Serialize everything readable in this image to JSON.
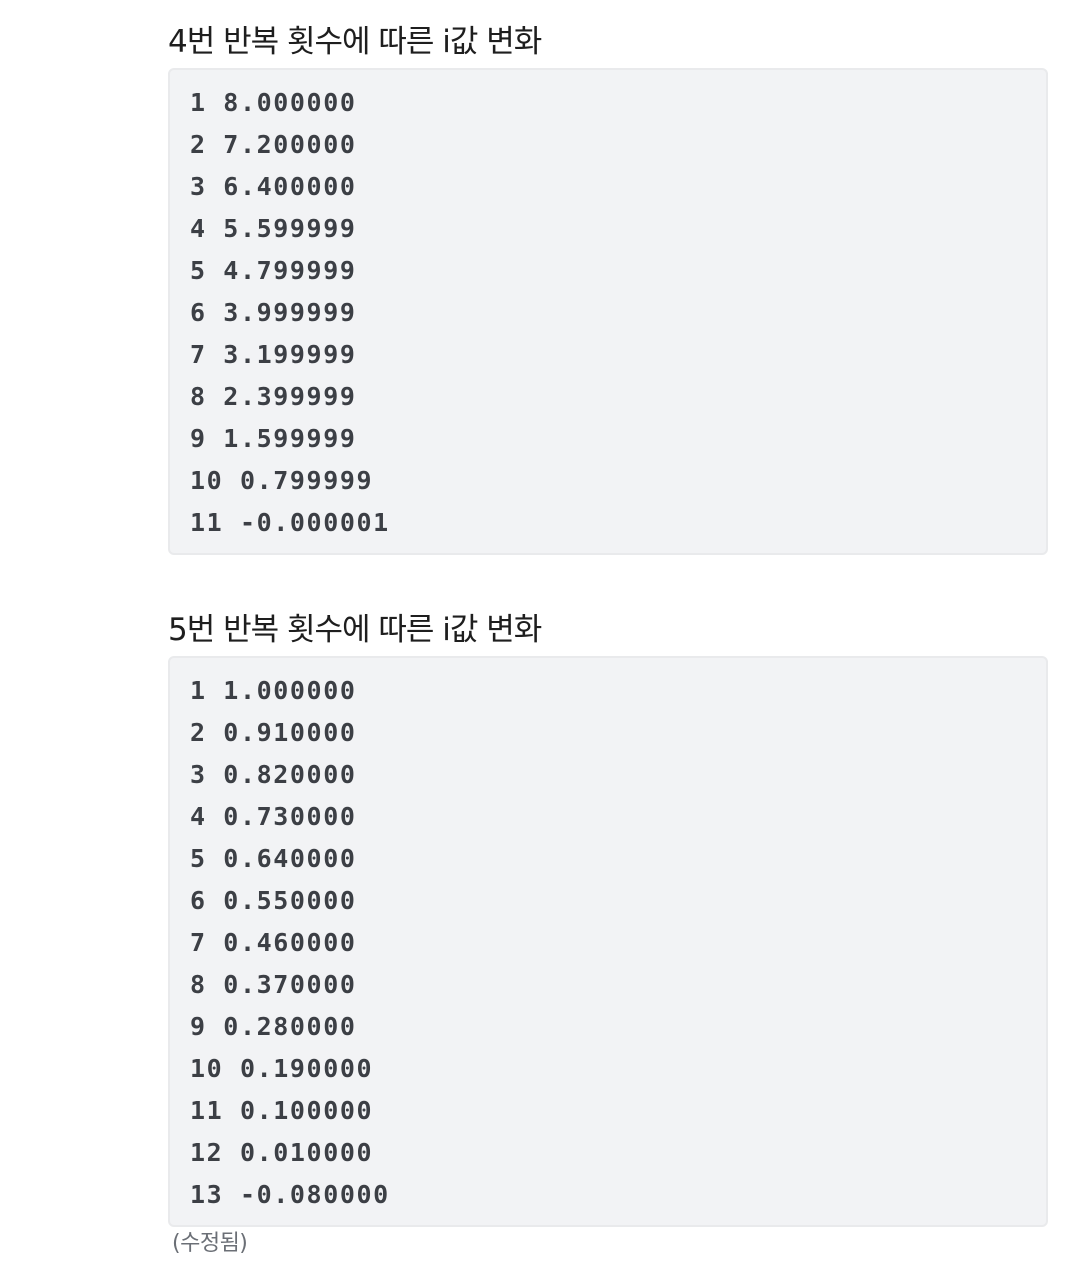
{
  "sections": [
    {
      "title": "4번 반복 횟수에 따른 i값 변화",
      "lines": [
        "1 8.000000",
        "2 7.200000",
        "3 6.400000",
        "4 5.599999",
        "5 4.799999",
        "6 3.999999",
        "7 3.199999",
        "8 2.399999",
        "9 1.599999",
        "10 0.799999",
        "11 -0.000001"
      ]
    },
    {
      "title": "5번 반복 횟수에 따른 i값 변화",
      "lines": [
        "1 1.000000",
        "2 0.910000",
        "3 0.820000",
        "4 0.730000",
        "5 0.640000",
        "6 0.550000",
        "7 0.460000",
        "8 0.370000",
        "9 0.280000",
        "10 0.190000",
        "11 0.100000",
        "12 0.010000",
        "13 -0.080000"
      ]
    }
  ],
  "edited_label": "(수정됨)",
  "colors": {
    "code_background": "#f2f3f5",
    "code_text": "#3c3f45",
    "title_text": "#1e1e1e",
    "muted_text": "#6b6f76"
  }
}
